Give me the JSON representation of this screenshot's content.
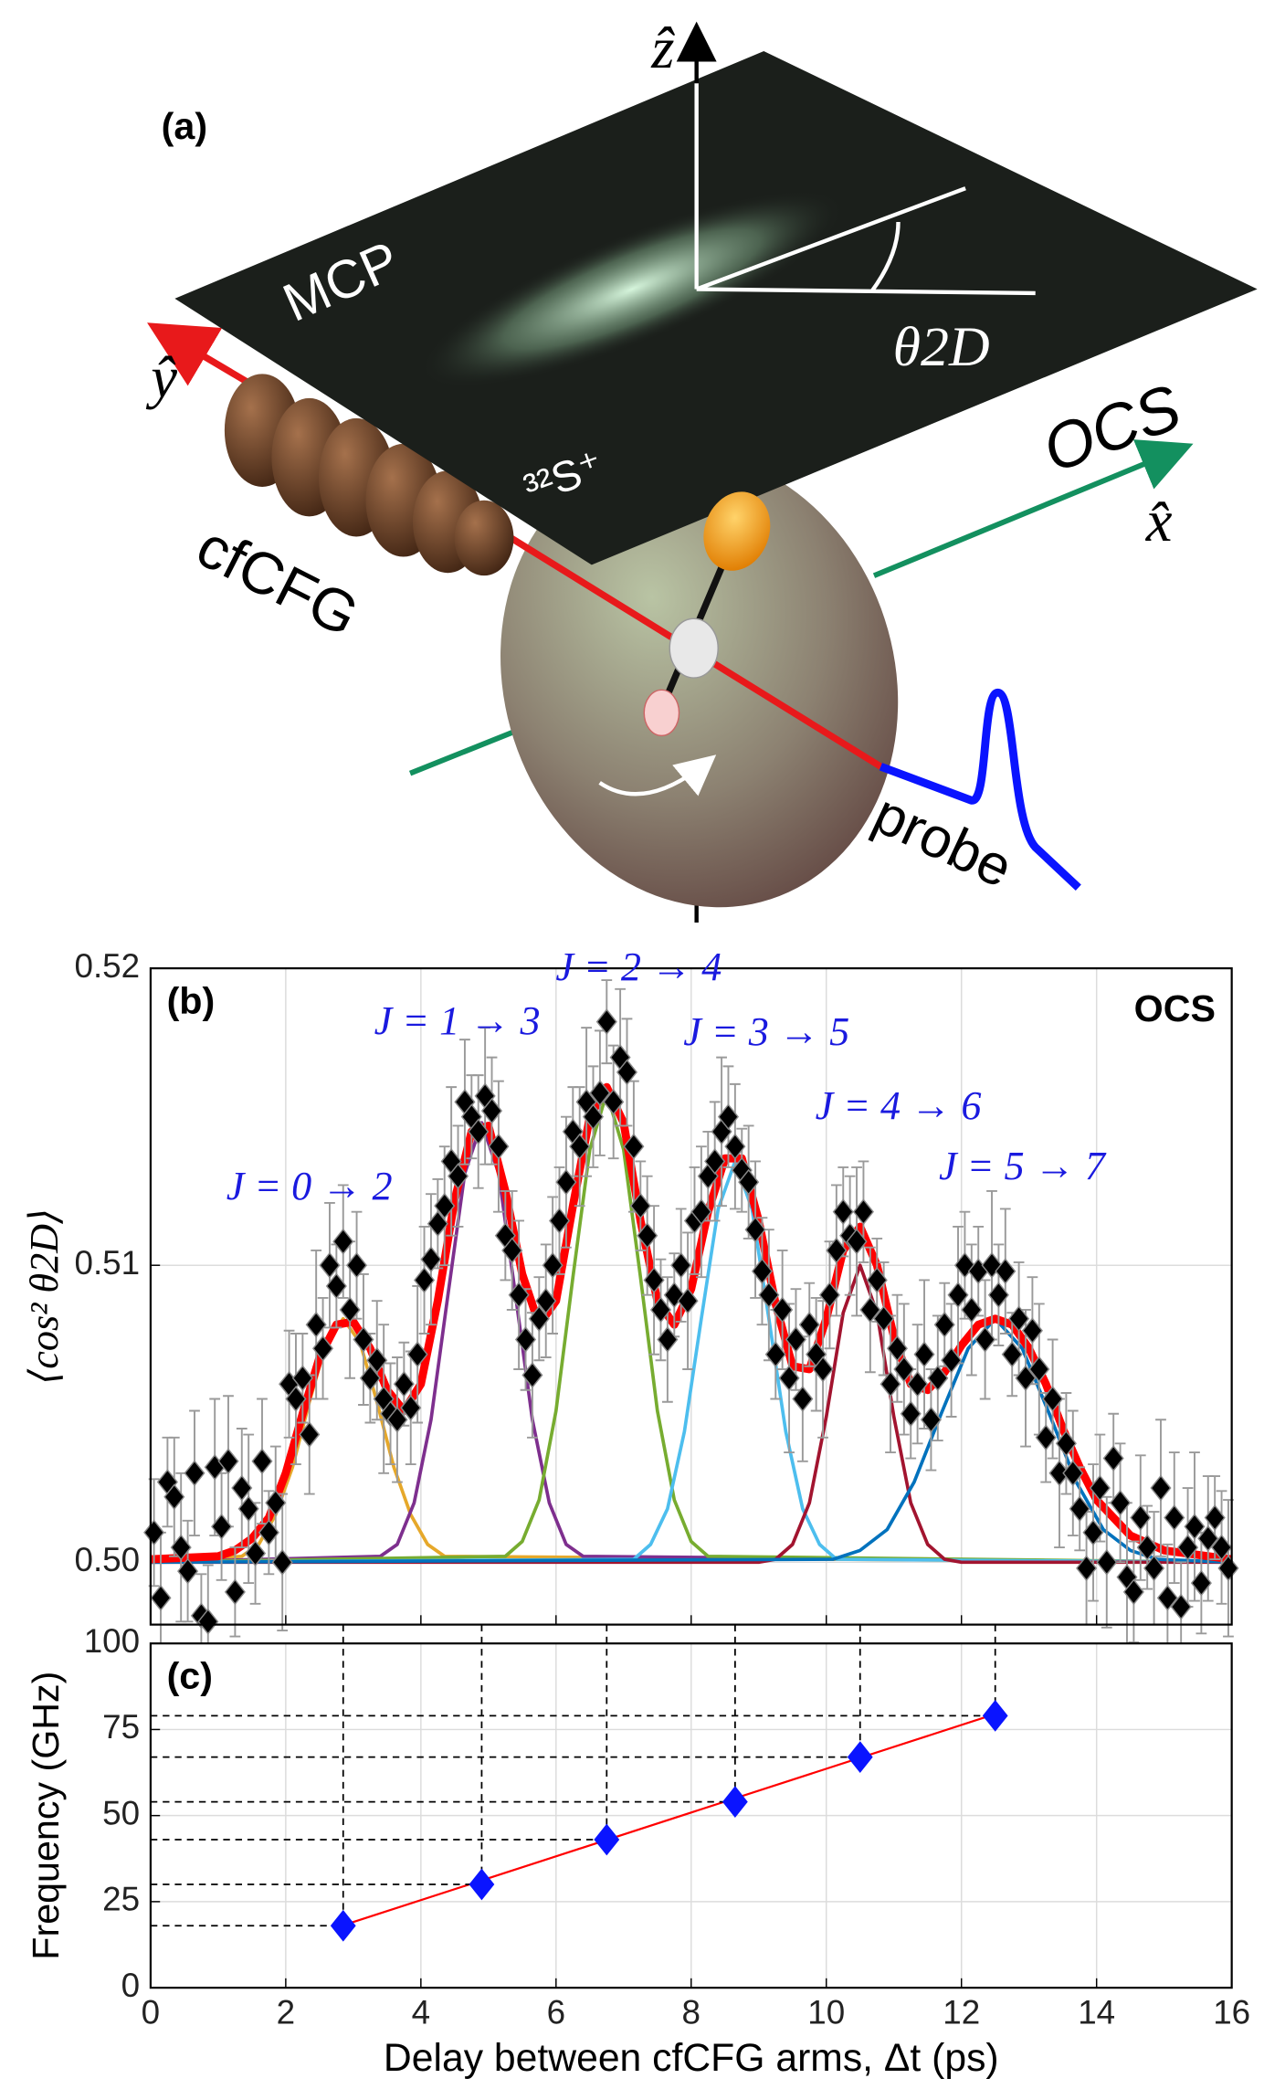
{
  "figure_a": {
    "label": "(a)",
    "plate": "MCP",
    "ion": "³²S⁺",
    "grating": "cfCFG",
    "molecule": "OCS",
    "pulse": "probe",
    "y_axis": "ŷ",
    "z_axis": "ẑ",
    "x_axis": "x̂",
    "angle": "θ2D"
  },
  "chart_data": [
    {
      "type": "scatter",
      "label": "(b)",
      "annotation": "OCS",
      "ylabel": "⟨cos² θ2D⟩",
      "annotations": [
        "J = 0 → 2",
        "J = 1 → 3",
        "J = 2 → 4",
        "J = 3 → 5",
        "J = 4 → 6",
        "J = 5 → 7"
      ],
      "annotation_color": "#1a1adf",
      "xlim": [
        0,
        16
      ],
      "xticks": [
        0,
        2,
        4,
        6,
        8,
        10,
        12,
        14,
        16
      ],
      "ylim": [
        0.4979,
        0.52
      ],
      "yticks": [
        {
          "value": 0.5,
          "label": "0.50"
        },
        0.51,
        0.52
      ],
      "grid": true,
      "series": [
        {
          "mode": "line",
          "color": "#e6a82a",
          "x": [
            0,
            1.35,
            1.6,
            1.85,
            2.1,
            2.35,
            2.6,
            2.85,
            3.1,
            3.35,
            3.6,
            3.85,
            4.1,
            4.35,
            16
          ],
          "values": [
            0.5,
            0.5002,
            0.5006,
            0.5016,
            0.5032,
            0.5054,
            0.5074,
            0.5082,
            0.5074,
            0.5054,
            0.5032,
            0.5016,
            0.5006,
            0.5002,
            0.5
          ]
        },
        {
          "mode": "line",
          "color": "#7e2f8e",
          "x": [
            0,
            3.4,
            3.65,
            3.9,
            4.15,
            4.4,
            4.65,
            4.9,
            5.15,
            5.4,
            5.65,
            5.9,
            6.15,
            6.4,
            16
          ],
          "values": [
            0.5,
            0.5002,
            0.5006,
            0.502,
            0.5048,
            0.509,
            0.5131,
            0.5148,
            0.5131,
            0.509,
            0.5048,
            0.502,
            0.5006,
            0.5002,
            0.5
          ]
        },
        {
          "mode": "line",
          "color": "#77ac30",
          "x": [
            0,
            5.25,
            5.5,
            5.75,
            6,
            6.25,
            6.5,
            6.75,
            7,
            7.25,
            7.5,
            7.75,
            8,
            8.25,
            16
          ],
          "values": [
            0.5,
            0.5002,
            0.5007,
            0.5021,
            0.5051,
            0.5096,
            0.5139,
            0.5158,
            0.5139,
            0.5096,
            0.5051,
            0.5021,
            0.5007,
            0.5002,
            0.5
          ]
        },
        {
          "mode": "line",
          "color": "#4dbeee",
          "x": [
            0,
            7.15,
            7.4,
            7.65,
            7.9,
            8.15,
            8.4,
            8.65,
            8.9,
            9.15,
            9.4,
            9.65,
            9.9,
            10.15,
            16
          ],
          "values": [
            0.5,
            0.5001,
            0.5006,
            0.5018,
            0.5044,
            0.5082,
            0.5119,
            0.5135,
            0.5119,
            0.5082,
            0.5044,
            0.5018,
            0.5006,
            0.5001,
            0.5
          ]
        },
        {
          "mode": "line",
          "color": "#a2142f",
          "x": [
            0,
            9,
            9.25,
            9.5,
            9.75,
            10,
            10.25,
            10.5,
            10.75,
            11,
            11.25,
            11.5,
            11.75,
            12,
            16
          ],
          "values": [
            0.5,
            0.5,
            0.5001,
            0.5006,
            0.502,
            0.5049,
            0.5084,
            0.51,
            0.5084,
            0.5049,
            0.502,
            0.5006,
            0.5001,
            0.5,
            0.5
          ]
        },
        {
          "mode": "line",
          "color": "#0072bd",
          "x": [
            0,
            10.1,
            10.5,
            10.9,
            11.3,
            11.7,
            12.1,
            12.5,
            12.9,
            13.3,
            13.7,
            14.1,
            14.5,
            14.9,
            16
          ],
          "values": [
            0.5,
            0.5001,
            0.5004,
            0.5011,
            0.5027,
            0.505,
            0.5072,
            0.5082,
            0.5072,
            0.505,
            0.5027,
            0.5011,
            0.5004,
            0.5001,
            0.5
          ]
        },
        {
          "mode": "markers",
          "color": "#000000",
          "errorcolor": "#9a9a9a",
          "x": [
            0.05,
            0.15,
            0.25,
            0.35,
            0.45,
            0.55,
            0.65,
            0.75,
            0.85,
            0.95,
            1.05,
            1.15,
            1.25,
            1.35,
            1.45,
            1.55,
            1.65,
            1.75,
            1.85,
            1.95,
            2.05,
            2.15,
            2.25,
            2.35,
            2.45,
            2.55,
            2.65,
            2.75,
            2.85,
            2.95,
            3.05,
            3.15,
            3.25,
            3.35,
            3.45,
            3.55,
            3.65,
            3.75,
            3.85,
            3.95,
            4.05,
            4.15,
            4.25,
            4.35,
            4.45,
            4.55,
            4.65,
            4.75,
            4.85,
            4.95,
            5.05,
            5.15,
            5.25,
            5.35,
            5.45,
            5.55,
            5.65,
            5.75,
            5.85,
            5.95,
            6.05,
            6.15,
            6.25,
            6.35,
            6.45,
            6.55,
            6.65,
            6.75,
            6.85,
            6.95,
            7.05,
            7.15,
            7.25,
            7.35,
            7.45,
            7.55,
            7.65,
            7.75,
            7.85,
            7.95,
            8.05,
            8.15,
            8.25,
            8.35,
            8.45,
            8.55,
            8.65,
            8.75,
            8.85,
            8.95,
            9.05,
            9.15,
            9.25,
            9.35,
            9.45,
            9.55,
            9.65,
            9.75,
            9.85,
            9.95,
            10.05,
            10.15,
            10.25,
            10.35,
            10.45,
            10.55,
            10.65,
            10.75,
            10.85,
            10.95,
            11.05,
            11.15,
            11.25,
            11.35,
            11.45,
            11.55,
            11.65,
            11.75,
            11.85,
            11.95,
            12.05,
            12.15,
            12.25,
            12.35,
            12.45,
            12.55,
            12.65,
            12.75,
            12.85,
            12.95,
            13.05,
            13.15,
            13.25,
            13.35,
            13.45,
            13.55,
            13.65,
            13.75,
            13.85,
            13.95,
            14.05,
            14.15,
            14.25,
            14.35,
            14.45,
            14.55,
            14.65,
            14.75,
            14.85,
            14.95,
            15.05,
            15.15,
            15.25,
            15.35,
            15.45,
            15.55,
            15.65,
            15.75,
            15.85,
            15.95
          ],
          "values": [
            0.501,
            0.4988,
            0.5027,
            0.5022,
            0.5005,
            0.4997,
            0.503,
            0.4982,
            0.498,
            0.5032,
            0.5012,
            0.5034,
            0.499,
            0.5025,
            0.5018,
            0.5003,
            0.5034,
            0.501,
            0.502,
            0.5,
            0.506,
            0.5055,
            0.5062,
            0.5043,
            0.508,
            0.5072,
            0.51,
            0.5093,
            0.5108,
            0.5085,
            0.51,
            0.5075,
            0.5062,
            0.5068,
            0.5055,
            0.505,
            0.5048,
            0.506,
            0.5052,
            0.507,
            0.5095,
            0.5102,
            0.5114,
            0.512,
            0.5135,
            0.513,
            0.5155,
            0.515,
            0.5145,
            0.5157,
            0.5152,
            0.514,
            0.511,
            0.5105,
            0.509,
            0.5075,
            0.5063,
            0.5082,
            0.5088,
            0.51,
            0.5115,
            0.5128,
            0.5145,
            0.514,
            0.5155,
            0.515,
            0.5158,
            0.5182,
            0.5155,
            0.517,
            0.5165,
            0.514,
            0.512,
            0.511,
            0.5095,
            0.5085,
            0.5075,
            0.509,
            0.51,
            0.5088,
            0.5115,
            0.5118,
            0.513,
            0.5135,
            0.5145,
            0.515,
            0.514,
            0.5132,
            0.5128,
            0.5112,
            0.5098,
            0.509,
            0.507,
            0.5085,
            0.5062,
            0.5075,
            0.5055,
            0.508,
            0.507,
            0.5065,
            0.509,
            0.5105,
            0.5118,
            0.511,
            0.5108,
            0.5118,
            0.5085,
            0.5095,
            0.5082,
            0.506,
            0.5072,
            0.5065,
            0.505,
            0.506,
            0.507,
            0.5048,
            0.5062,
            0.508,
            0.5068,
            0.509,
            0.51,
            0.5085,
            0.5098,
            0.5075,
            0.51,
            0.509,
            0.5098,
            0.507,
            0.5082,
            0.5062,
            0.5078,
            0.5065,
            0.5042,
            0.5055,
            0.503,
            0.504,
            0.503,
            0.5018,
            0.4998,
            0.501,
            0.5025,
            0.5,
            0.5035,
            0.502,
            0.4995,
            0.499,
            0.5015,
            0.5005,
            0.4998,
            0.5025,
            0.4988,
            0.5015,
            0.4985,
            0.5005,
            0.5012,
            0.4993,
            0.5008,
            0.5015,
            0.5005,
            0.4998
          ],
          "errors": [
            0.0018,
            0.0022,
            0.0015,
            0.002,
            0.0025,
            0.0017,
            0.0021,
            0.0014,
            0.0019,
            0.0023,
            0.0018,
            0.0022,
            0.0015,
            0.002,
            0.0025,
            0.0017,
            0.0021,
            0.0014,
            0.0019,
            0.0023,
            0.0018,
            0.0022,
            0.0015,
            0.002,
            0.0025,
            0.0017,
            0.0021,
            0.0014,
            0.0019,
            0.0023,
            0.0018,
            0.0022,
            0.0015,
            0.002,
            0.0025,
            0.0017,
            0.0021,
            0.0014,
            0.0019,
            0.0023,
            0.0018,
            0.0022,
            0.0015,
            0.002,
            0.0025,
            0.0017,
            0.0021,
            0.0014,
            0.0019,
            0.0023,
            0.0018,
            0.0022,
            0.0015,
            0.002,
            0.0025,
            0.0017,
            0.0021,
            0.0014,
            0.0019,
            0.0023,
            0.0018,
            0.0022,
            0.0015,
            0.002,
            0.0025,
            0.0017,
            0.0021,
            0.0014,
            0.0019,
            0.0023,
            0.0018,
            0.0022,
            0.0015,
            0.002,
            0.0025,
            0.0017,
            0.0021,
            0.0014,
            0.0019,
            0.0023,
            0.0018,
            0.0022,
            0.0015,
            0.002,
            0.0025,
            0.0017,
            0.0021,
            0.0014,
            0.0019,
            0.0023,
            0.0018,
            0.0022,
            0.0015,
            0.002,
            0.0025,
            0.0017,
            0.0021,
            0.0014,
            0.0019,
            0.0023,
            0.0018,
            0.0022,
            0.0015,
            0.002,
            0.0025,
            0.0017,
            0.0021,
            0.0014,
            0.0019,
            0.0023,
            0.0018,
            0.0022,
            0.0015,
            0.002,
            0.0025,
            0.0017,
            0.0021,
            0.0014,
            0.0019,
            0.0023,
            0.0018,
            0.0022,
            0.0015,
            0.002,
            0.0025,
            0.0017,
            0.0021,
            0.0014,
            0.0019,
            0.0023,
            0.0018,
            0.0022,
            0.0015,
            0.002,
            0.0025,
            0.0017,
            0.0021,
            0.0014,
            0.0019,
            0.0023,
            0.0018,
            0.0022,
            0.0015,
            0.002,
            0.0025,
            0.0017,
            0.0021,
            0.0014,
            0.0019,
            0.0023,
            0.0018,
            0.0022,
            0.0015,
            0.002,
            0.0025,
            0.0017,
            0.0021,
            0.0014,
            0.0019,
            0.0023
          ]
        },
        {
          "mode": "line",
          "color": "#ff0000",
          "width": 6,
          "x": [
            0,
            1,
            1.25,
            1.5,
            1.75,
            2,
            2.25,
            2.5,
            2.75,
            3,
            3.25,
            3.5,
            3.75,
            4,
            4.25,
            4.5,
            4.75,
            5,
            5.25,
            5.5,
            5.75,
            6,
            6.25,
            6.5,
            6.75,
            7,
            7.25,
            7.5,
            7.75,
            8,
            8.25,
            8.5,
            8.75,
            9,
            9.25,
            9.5,
            9.75,
            10,
            10.25,
            10.5,
            10.75,
            11,
            11.25,
            11.5,
            11.75,
            12,
            12.25,
            12.5,
            12.75,
            13,
            13.25,
            13.5,
            13.75,
            14,
            14.5,
            15,
            16
          ],
          "values": [
            0.5001,
            0.5002,
            0.5004,
            0.5008,
            0.5015,
            0.503,
            0.505,
            0.5069,
            0.508,
            0.5081,
            0.5072,
            0.5058,
            0.5051,
            0.506,
            0.5088,
            0.5122,
            0.5145,
            0.5147,
            0.5125,
            0.5097,
            0.508,
            0.5088,
            0.512,
            0.515,
            0.516,
            0.5148,
            0.5115,
            0.5088,
            0.508,
            0.5092,
            0.5118,
            0.5136,
            0.5136,
            0.5115,
            0.5087,
            0.5066,
            0.5065,
            0.5082,
            0.5105,
            0.5113,
            0.51,
            0.5076,
            0.506,
            0.5058,
            0.5064,
            0.5073,
            0.508,
            0.5082,
            0.508,
            0.5072,
            0.506,
            0.5045,
            0.5032,
            0.5021,
            0.5009,
            0.5004,
            0.5001
          ]
        }
      ]
    },
    {
      "type": "scatter",
      "label": "(c)",
      "xlabel": "Delay between cfCFG arms, Δt (ps)",
      "ylabel": "Frequency (GHz)",
      "xlim": [
        0,
        16
      ],
      "xticks": [
        0,
        2,
        4,
        6,
        8,
        10,
        12,
        14,
        16
      ],
      "ylim": [
        0,
        100
      ],
      "yticks": [
        0,
        25,
        50,
        75,
        100
      ],
      "grid": true,
      "series": [
        {
          "mode": "line",
          "color": "#ff0000",
          "width": 1.5,
          "x": [
            2.75,
            12.5
          ],
          "values": [
            17.5,
            79.5
          ]
        },
        {
          "mode": "markers",
          "color": "#0a14ff",
          "guides": true,
          "x": [
            2.85,
            4.9,
            6.75,
            8.65,
            10.5,
            12.5
          ],
          "values": [
            18,
            30,
            43,
            54,
            67,
            79
          ]
        }
      ]
    }
  ]
}
